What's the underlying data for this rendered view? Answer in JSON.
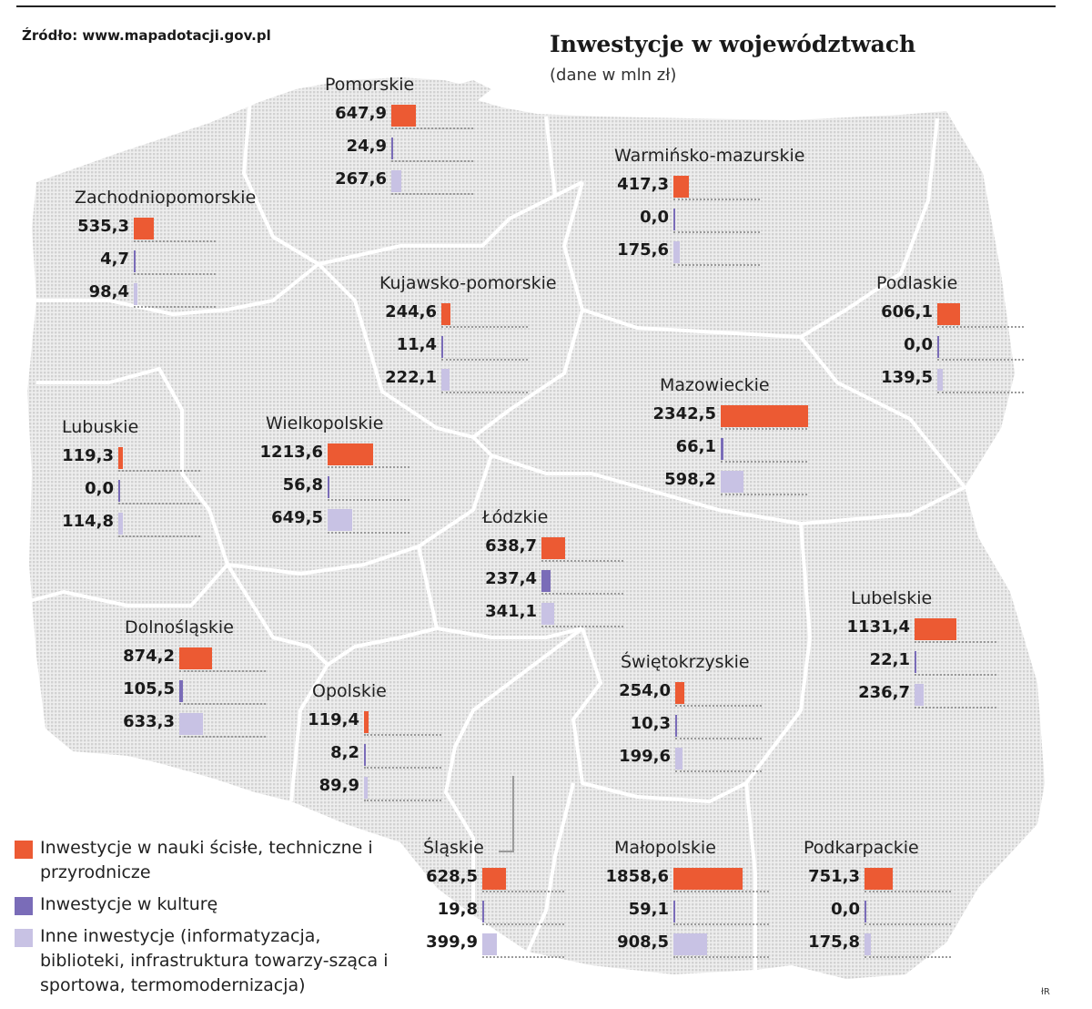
{
  "source": "Źródło: www.mapadotacji.gov.pl",
  "title": "Inwestycje w województwach",
  "subtitle": "(dane w mln zł)",
  "credit": "łR",
  "colors": {
    "science": "#ec5a33",
    "culture": "#7a6cb8",
    "other": "#c8c2e4"
  },
  "legend": [
    {
      "key": "science",
      "text": "Inwestycje w nauki ścisłe, techniczne i przyrodnicze"
    },
    {
      "key": "culture",
      "text": "Inwestycje w kulturę"
    },
    {
      "key": "other",
      "text": "Inne inwestycje (informatyzacja, biblioteki, infrastruktura towarzy-sząca i sportowa, termomodernizacja)"
    }
  ],
  "regions": [
    {
      "id": "pomorskie",
      "name": "Pomorskie",
      "values": [
        "647,9",
        "24,9",
        "267,6"
      ]
    },
    {
      "id": "zachodniopomorskie",
      "name": "Zachodniopomorskie",
      "values": [
        "535,3",
        "4,7",
        "98,4"
      ]
    },
    {
      "id": "warminsko-mazurskie",
      "name": "Warmińsko-mazurskie",
      "values": [
        "417,3",
        "0,0",
        "175,6"
      ]
    },
    {
      "id": "kujawsko-pomorskie",
      "name": "Kujawsko-pomorskie",
      "values": [
        "244,6",
        "11,4",
        "222,1"
      ]
    },
    {
      "id": "podlaskie",
      "name": "Podlaskie",
      "values": [
        "606,1",
        "0,0",
        "139,5"
      ]
    },
    {
      "id": "mazowieckie",
      "name": "Mazowieckie",
      "values": [
        "2342,5",
        "66,1",
        "598,2"
      ]
    },
    {
      "id": "lubuskie",
      "name": "Lubuskie",
      "values": [
        "119,3",
        "0,0",
        "114,8"
      ]
    },
    {
      "id": "wielkopolskie",
      "name": "Wielkopolskie",
      "values": [
        "1213,6",
        "56,8",
        "649,5"
      ]
    },
    {
      "id": "lodzkie",
      "name": "Łódzkie",
      "values": [
        "638,7",
        "237,4",
        "341,1"
      ]
    },
    {
      "id": "lubelskie",
      "name": "Lubelskie",
      "values": [
        "1131,4",
        "22,1",
        "236,7"
      ]
    },
    {
      "id": "dolnoslaskie",
      "name": "Dolnośląskie",
      "values": [
        "874,2",
        "105,5",
        "633,3"
      ]
    },
    {
      "id": "opolskie",
      "name": "Opolskie",
      "values": [
        "119,4",
        "8,2",
        "89,9"
      ]
    },
    {
      "id": "swietokrzyskie",
      "name": "Świętokrzyskie",
      "values": [
        "254,0",
        "10,3",
        "199,6"
      ]
    },
    {
      "id": "slaskie",
      "name": "Śląskie",
      "values": [
        "628,5",
        "19,8",
        "399,9"
      ]
    },
    {
      "id": "malopolskie",
      "name": "Małopolskie",
      "values": [
        "1858,6",
        "59,1",
        "908,5"
      ]
    },
    {
      "id": "podkarpackie",
      "name": "Podkarpackie",
      "values": [
        "751,3",
        "0,0",
        "175,8"
      ]
    }
  ]
}
